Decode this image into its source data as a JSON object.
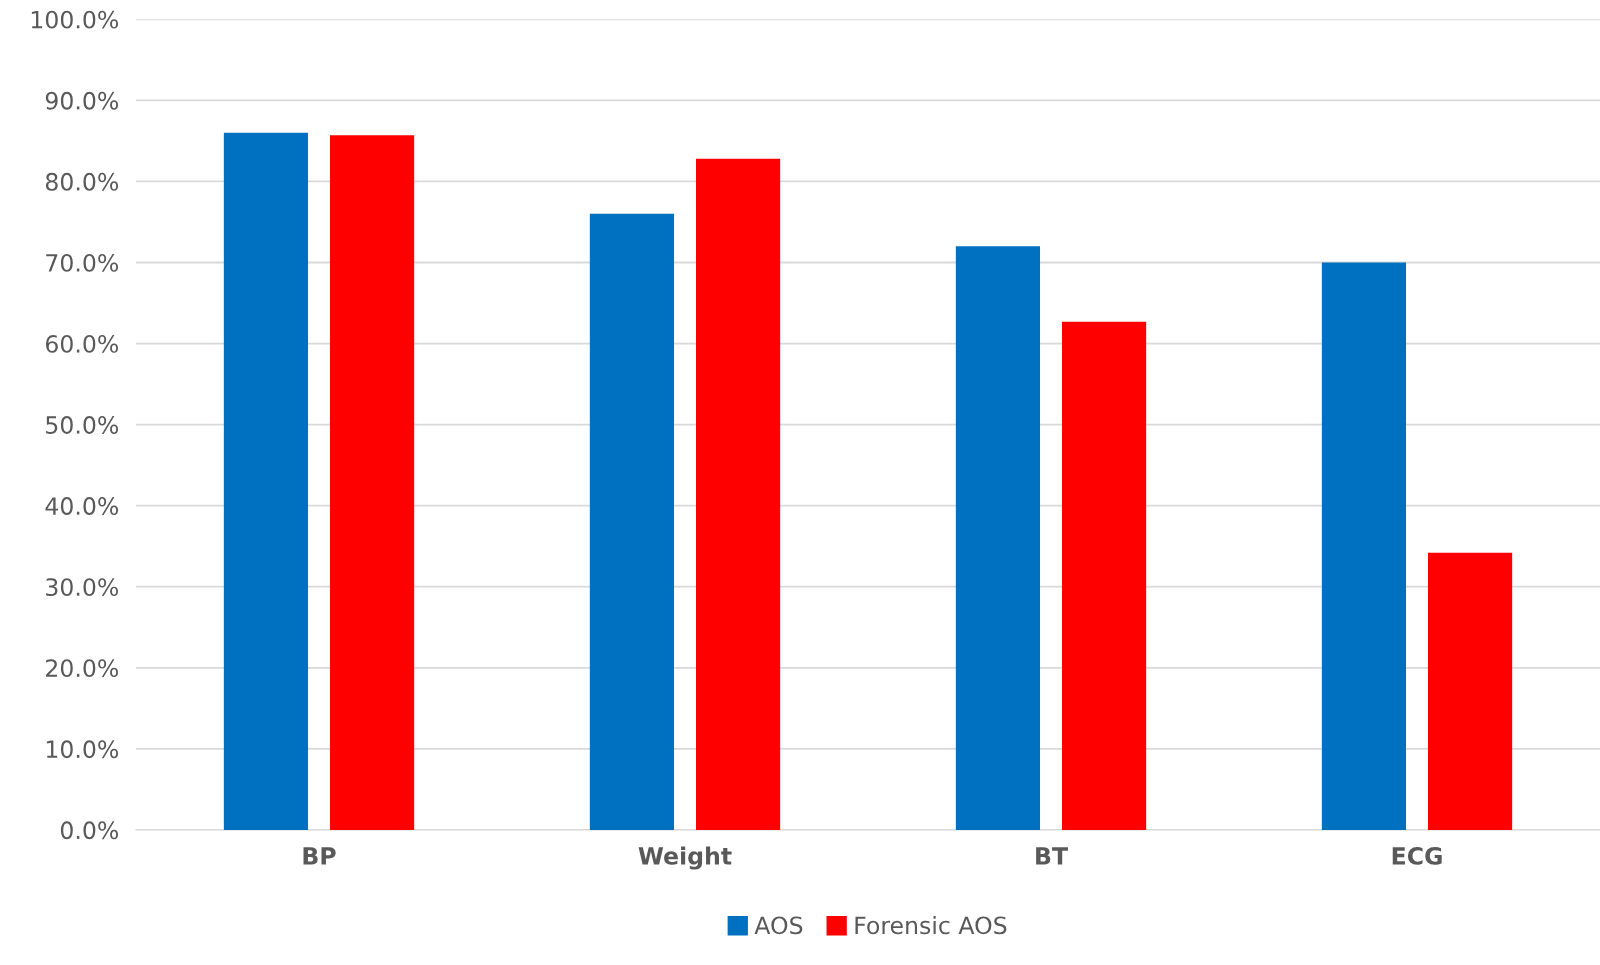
{
  "chart_data": {
    "type": "bar",
    "categories": [
      "BP",
      "Weight",
      "BT",
      "ECG"
    ],
    "series": [
      {
        "name": "AOS",
        "color": "#0070c0",
        "values": [
          86.0,
          76.0,
          72.0,
          70.0
        ]
      },
      {
        "name": "Forensic AOS",
        "color": "#ff0000",
        "values": [
          85.7,
          82.8,
          62.7,
          34.2
        ]
      }
    ],
    "ylim": [
      0,
      100
    ],
    "yticks": [
      {
        "value": 0,
        "label": "0.0%"
      },
      {
        "value": 10,
        "label": "10.0%"
      },
      {
        "value": 20,
        "label": "20.0%"
      },
      {
        "value": 30,
        "label": "30.0%"
      },
      {
        "value": 40,
        "label": "40.0%"
      },
      {
        "value": 50,
        "label": "50.0%"
      },
      {
        "value": 60,
        "label": "60.0%"
      },
      {
        "value": 70,
        "label": "70.0%"
      },
      {
        "value": 80,
        "label": "80.0%"
      },
      {
        "value": 90,
        "label": "90.0%"
      },
      {
        "value": 100,
        "label": "100.0%"
      }
    ],
    "grid": "y",
    "legend": "bottom"
  }
}
